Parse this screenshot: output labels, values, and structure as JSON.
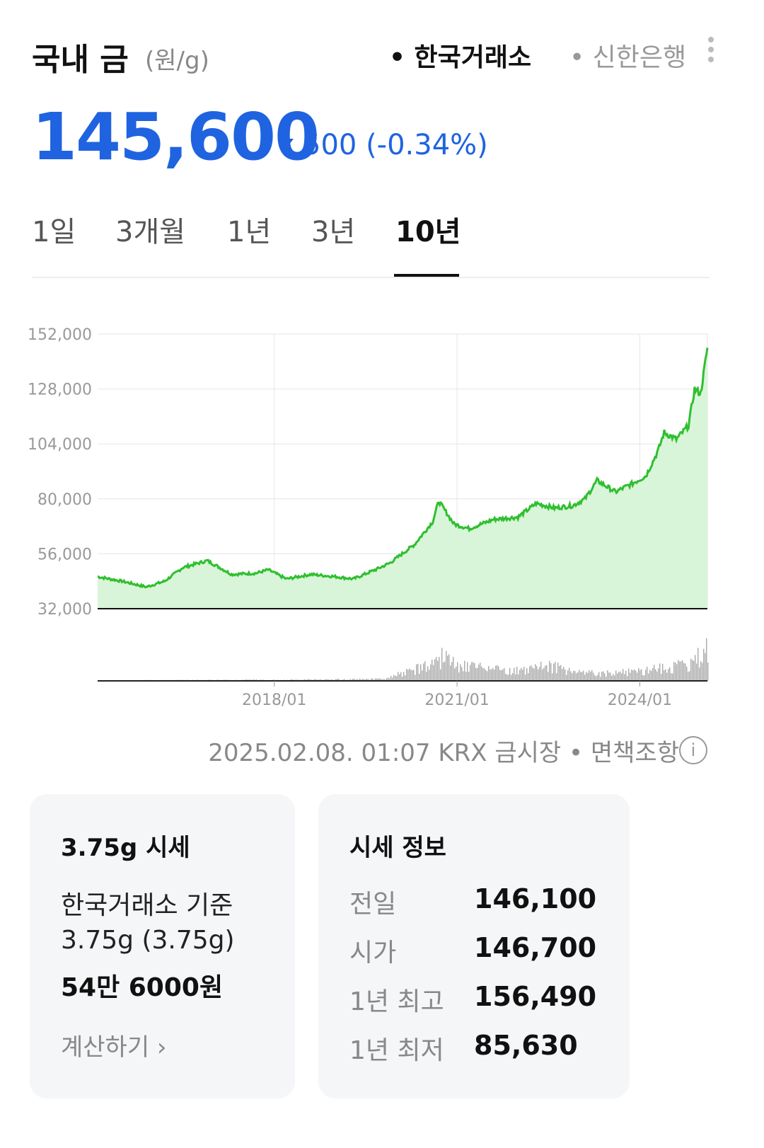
{
  "header": {
    "title": "국내 금",
    "unit": "(원/g)",
    "source_active": "• 한국거래소",
    "source_inactive": "• 신한은행",
    "more_icon": "more-vertical-icon"
  },
  "quote": {
    "price": "145,600",
    "change": "500 (-0.34%)",
    "direction": "down",
    "color": "#1f63e0"
  },
  "tabs": [
    {
      "label": "1일",
      "active": false
    },
    {
      "label": "3개월",
      "active": false
    },
    {
      "label": "1년",
      "active": false
    },
    {
      "label": "3년",
      "active": false
    },
    {
      "label": "10년",
      "active": true
    }
  ],
  "chart_data": {
    "type": "area",
    "y_ticks": [
      "152,000",
      "128,000",
      "104,000",
      "80,000",
      "56,000",
      "32,000"
    ],
    "ylim": [
      32000,
      152000
    ],
    "x_ticks": [
      "2018/01",
      "2021/01",
      "2024/01"
    ],
    "line_color": "#2fbf2f",
    "fill_color": "#d9f5d9",
    "points": [
      [
        2015.1,
        46000
      ],
      [
        2015.5,
        44000
      ],
      [
        2015.9,
        41500
      ],
      [
        2016.2,
        44000
      ],
      [
        2016.5,
        50000
      ],
      [
        2016.9,
        53000
      ],
      [
        2017.3,
        47000
      ],
      [
        2017.7,
        47500
      ],
      [
        2017.9,
        49000
      ],
      [
        2018.2,
        45000
      ],
      [
        2018.6,
        47000
      ],
      [
        2019.0,
        46000
      ],
      [
        2019.3,
        45000
      ],
      [
        2019.7,
        49500
      ],
      [
        2019.9,
        52000
      ],
      [
        2020.3,
        60000
      ],
      [
        2020.6,
        70000
      ],
      [
        2020.7,
        79000
      ],
      [
        2020.95,
        69000
      ],
      [
        2021.2,
        67000
      ],
      [
        2021.6,
        71000
      ],
      [
        2022.0,
        72000
      ],
      [
        2022.3,
        78000
      ],
      [
        2022.6,
        76000
      ],
      [
        2022.9,
        77000
      ],
      [
        2023.1,
        80000
      ],
      [
        2023.3,
        88000
      ],
      [
        2023.6,
        83000
      ],
      [
        2023.9,
        87000
      ],
      [
        2024.1,
        90000
      ],
      [
        2024.3,
        101000
      ],
      [
        2024.4,
        109000
      ],
      [
        2024.6,
        106000
      ],
      [
        2024.8,
        112000
      ],
      [
        2024.9,
        128000
      ],
      [
        2025.0,
        126000
      ],
      [
        2025.11,
        146000
      ]
    ],
    "volume": [
      [
        2015.1,
        1
      ],
      [
        2016.0,
        1.5
      ],
      [
        2017.0,
        2
      ],
      [
        2018.0,
        2
      ],
      [
        2019.0,
        3
      ],
      [
        2019.8,
        4
      ],
      [
        2020.2,
        20
      ],
      [
        2020.6,
        32
      ],
      [
        2020.75,
        48
      ],
      [
        2021.0,
        30
      ],
      [
        2021.5,
        25
      ],
      [
        2022.0,
        20
      ],
      [
        2022.5,
        30
      ],
      [
        2023.0,
        18
      ],
      [
        2023.5,
        15
      ],
      [
        2024.0,
        20
      ],
      [
        2024.5,
        28
      ],
      [
        2024.9,
        40
      ],
      [
        2025.11,
        70
      ]
    ]
  },
  "footnote": "2025.02.08. 01:07 KRX 금시장 • 면책조항",
  "info_icon": "info-icon",
  "card_375": {
    "title": "3.75g 시세",
    "line1": "한국거래소 기준",
    "line2": "3.75g (3.75g)",
    "amount": "54만 6000원",
    "link": "계산하기 ›"
  },
  "card_info": {
    "title": "시세 정보",
    "rows": [
      {
        "label": "전일",
        "value": "146,100"
      },
      {
        "label": "시가",
        "value": "146,700"
      },
      {
        "label": "1년 최고",
        "value": "156,490"
      },
      {
        "label": "1년 최저",
        "value": "85,630"
      }
    ]
  }
}
